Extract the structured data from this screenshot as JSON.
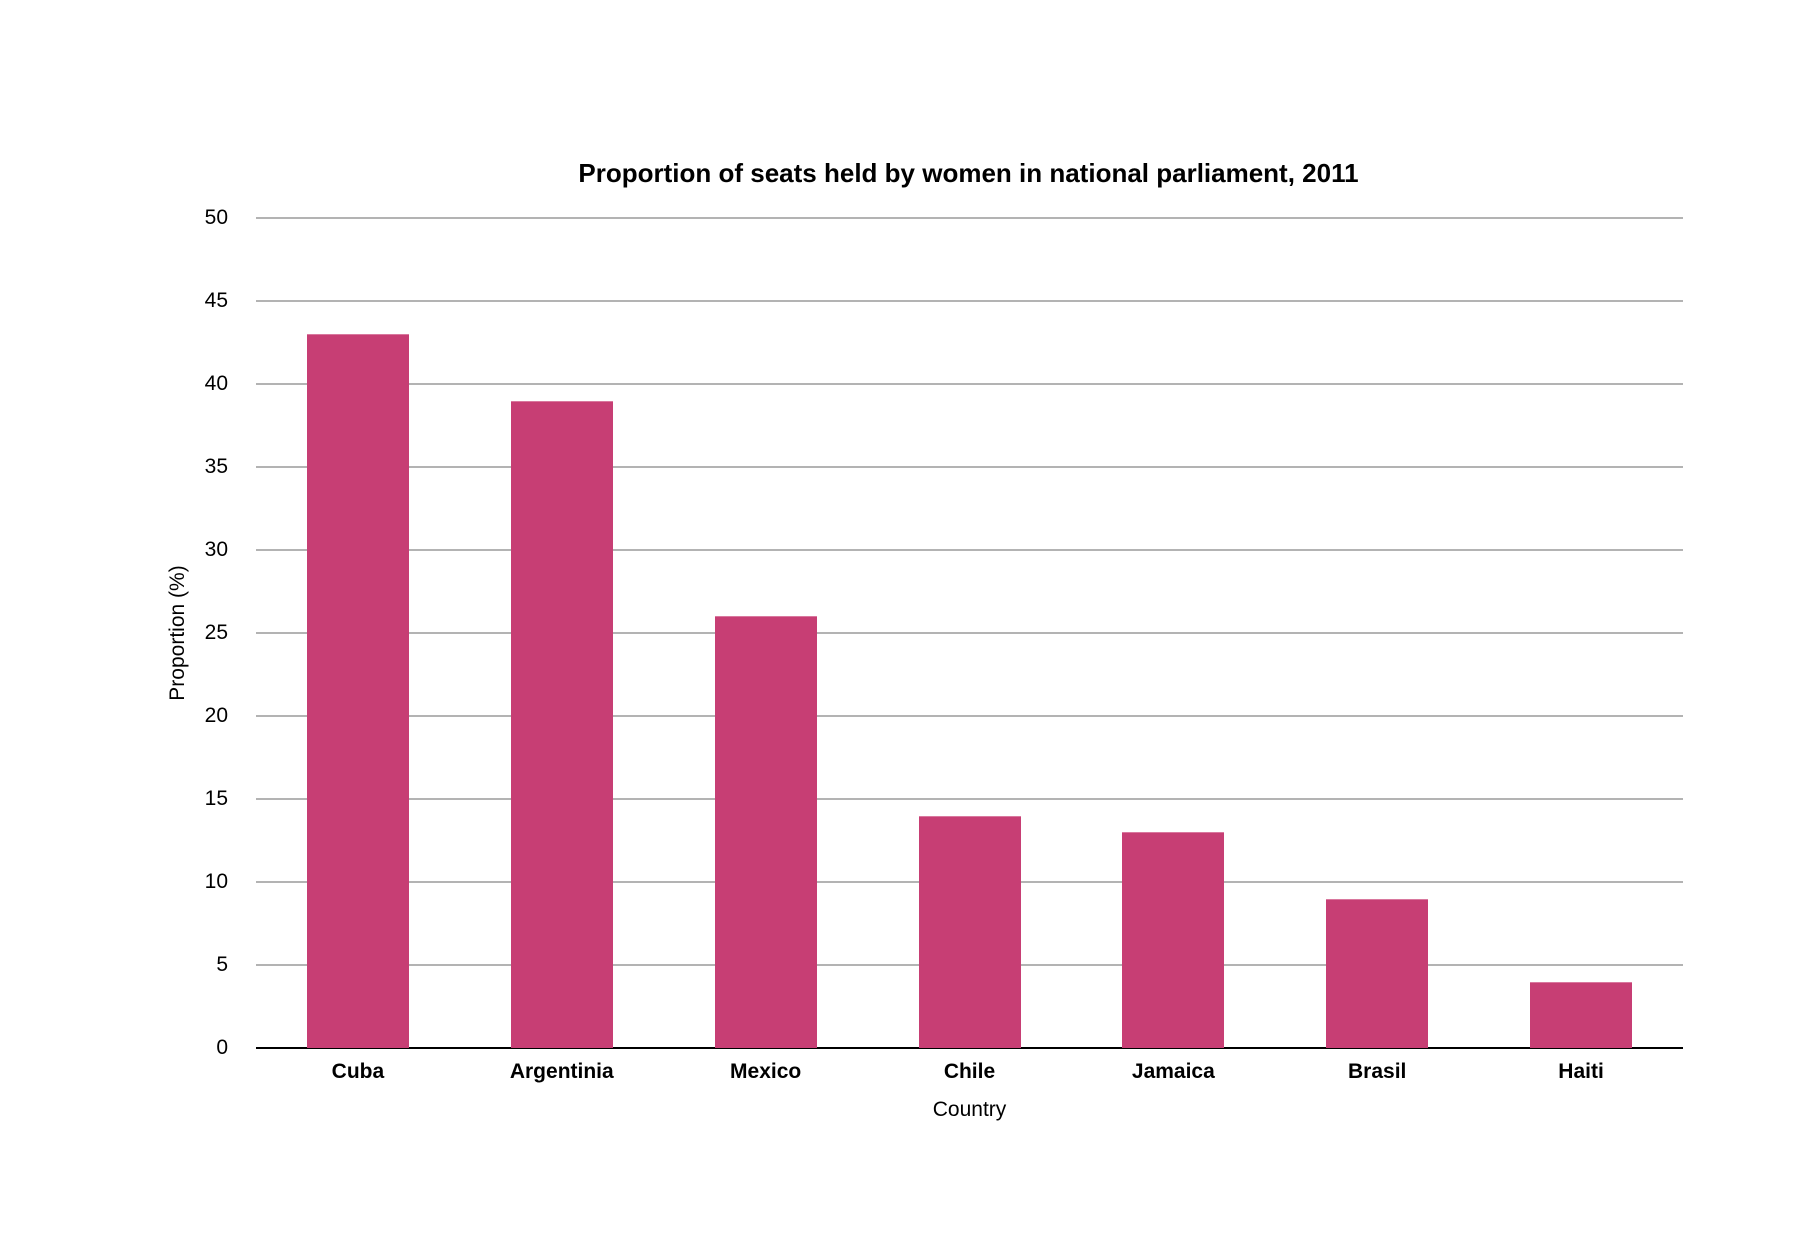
{
  "chart_data": {
    "type": "bar",
    "title": "Proportion of seats held by women in national parliament, 2011",
    "xlabel": "Country",
    "ylabel": "Proportion (%)",
    "categories": [
      "Cuba",
      "Argentinia",
      "Mexico",
      "Chile",
      "Jamaica",
      "Brasil",
      "Haiti"
    ],
    "values": [
      43,
      39,
      26,
      14,
      13,
      9,
      4
    ],
    "ylim": [
      0,
      50
    ],
    "yticks": [
      0,
      5,
      10,
      15,
      20,
      25,
      30,
      35,
      40,
      45,
      50
    ],
    "grid": true,
    "legend": null,
    "bar_color": "#c73e74"
  },
  "labels": {
    "title": "Proportion of seats held by women in national parliament, 2011",
    "xtitle": "Country",
    "ytitle": "Proportion (%)"
  }
}
